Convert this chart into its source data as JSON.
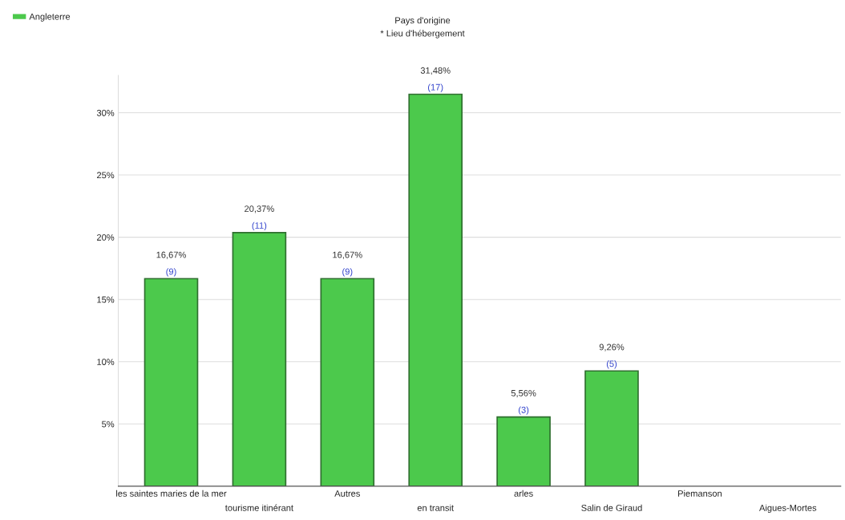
{
  "chart_data": {
    "type": "bar",
    "title": "Pays d'origine",
    "subtitle": "* Lieu d'hébergement",
    "categories": [
      "les saintes maries de la mer",
      "tourisme itinérant",
      "Autres",
      "en transit",
      "arles",
      "Salin de Giraud",
      "Piemanson",
      "Aigues-Mortes"
    ],
    "series": [
      {
        "name": "Angleterre",
        "color": "#4cc94c",
        "values": [
          16.67,
          20.37,
          16.67,
          31.48,
          5.56,
          9.26,
          0,
          0
        ],
        "value_labels": [
          "16,67%",
          "20,37%",
          "16,67%",
          "31,48%",
          "5,56%",
          "9,26%",
          null,
          null
        ]
      }
    ],
    "annotations": [
      {
        "text": "(9)",
        "x": "les saintes maries de la mer",
        "y": 16.67
      },
      {
        "text": "(11)",
        "x": "tourisme itinérant",
        "y": 20.37
      },
      {
        "text": "(9)",
        "x": "Autres",
        "y": 16.67
      },
      {
        "text": "(17)",
        "x": "en transit",
        "y": 31.48
      },
      {
        "text": "(3)",
        "x": "arles",
        "y": 5.56
      },
      {
        "text": "(5)",
        "x": "Salin de Giraud",
        "y": 9.26
      }
    ],
    "ylim": [
      0,
      33
    ],
    "yticks": [
      {
        "value": 5,
        "label": "5%"
      },
      {
        "value": 10,
        "label": "10%"
      },
      {
        "value": 15,
        "label": "15%"
      },
      {
        "value": 20,
        "label": "20%"
      },
      {
        "value": 25,
        "label": "25%"
      },
      {
        "value": 30,
        "label": "30%"
      }
    ],
    "grid": "y",
    "legend": "top left"
  }
}
